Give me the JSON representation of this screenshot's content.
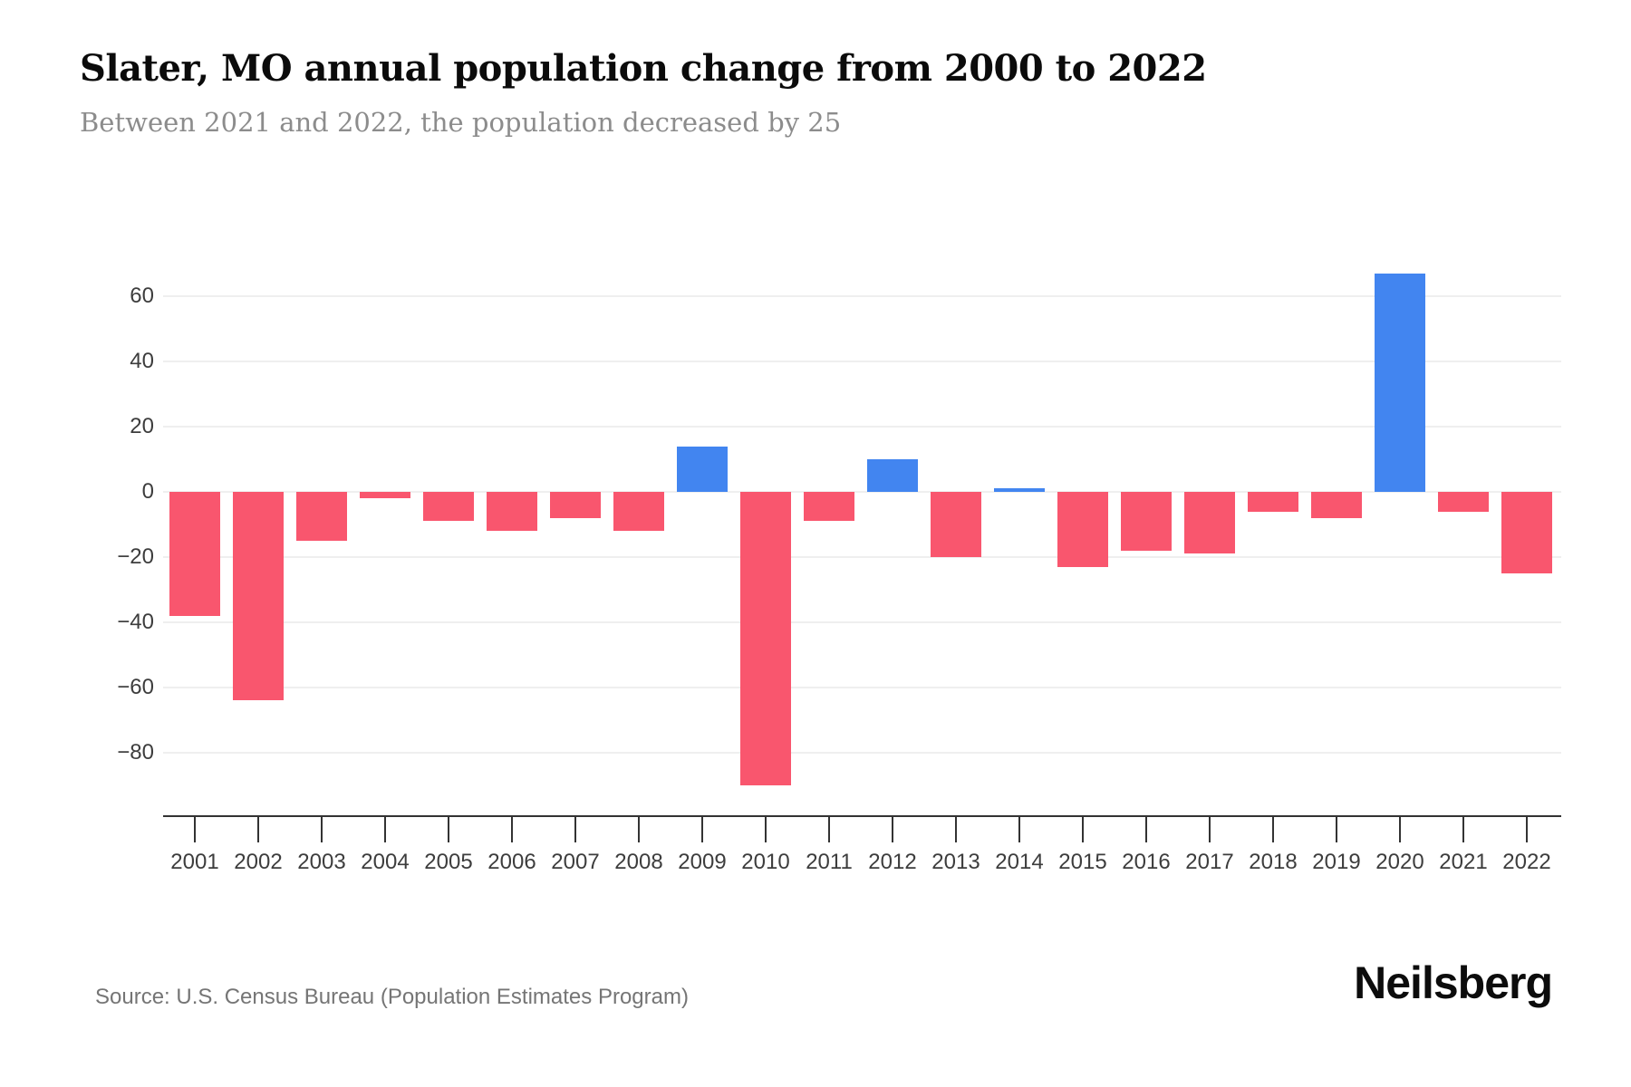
{
  "header": {
    "title": "Slater, MO annual population change from 2000 to 2022",
    "subtitle": "Between 2021 and 2022, the population decreased by 25"
  },
  "chart_data": {
    "type": "bar",
    "title": "Slater, MO annual population change from 2000 to 2022",
    "xlabel": "",
    "ylabel": "",
    "categories": [
      "2001",
      "2002",
      "2003",
      "2004",
      "2005",
      "2006",
      "2007",
      "2008",
      "2009",
      "2010",
      "2011",
      "2012",
      "2013",
      "2014",
      "2015",
      "2016",
      "2017",
      "2018",
      "2019",
      "2020",
      "2021",
      "2022"
    ],
    "values": [
      -38,
      -64,
      -15,
      -2,
      -9,
      -12,
      -8,
      -12,
      14,
      -90,
      -9,
      10,
      -20,
      1,
      -23,
      -18,
      -19,
      -6,
      -8,
      67,
      -6,
      -25
    ],
    "yticks": [
      60,
      40,
      20,
      0,
      -20,
      -40,
      -60,
      -80
    ],
    "ylim": [
      -100,
      80
    ],
    "grid": true,
    "legend": "none",
    "positive_color": "#4285F0",
    "negative_color": "#F9566E"
  },
  "footer": {
    "source": "Source: U.S. Census Bureau (Population Estimates Program)",
    "brand": "Neilsberg"
  }
}
